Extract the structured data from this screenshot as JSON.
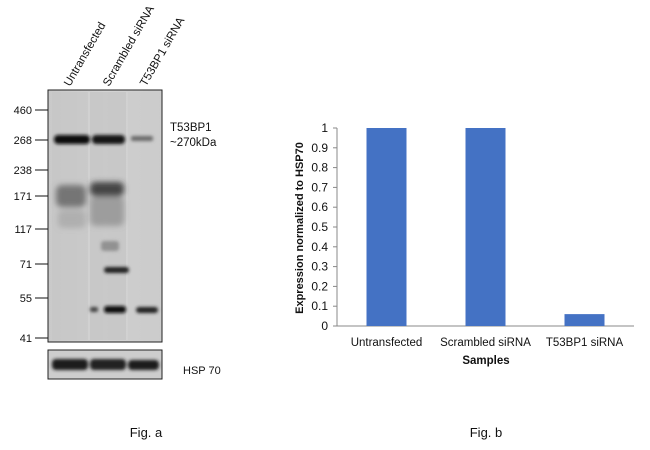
{
  "figure_a": {
    "lane_labels": [
      "Untransfected",
      "Scrambled siRNA",
      "T53BP1 siRNA"
    ],
    "ladder": [
      "460",
      "268",
      "238",
      "171",
      "117",
      "71",
      "55",
      "41"
    ],
    "target_label_line1": "T53BP1",
    "target_label_line2": "~270kDa",
    "loading_control_label": "HSP 70",
    "caption": "Fig. a"
  },
  "figure_b": {
    "caption": "Fig. b"
  },
  "chart_data": {
    "type": "bar",
    "categories": [
      "Untransfected",
      "Scrambled siRNA",
      "T53BP1 siRNA"
    ],
    "values": [
      1.0,
      1.0,
      0.06
    ],
    "title": "",
    "xlabel": "Samples",
    "ylabel": "Expression normalized to HSP70",
    "ylim": [
      0,
      1
    ],
    "yticks": [
      "0",
      "0.1",
      "0.2",
      "0.3",
      "0.4",
      "0.5",
      "0.6",
      "0.7",
      "0.8",
      "0.9",
      "1"
    ],
    "grid": false,
    "bar_color": "#4472c4"
  }
}
